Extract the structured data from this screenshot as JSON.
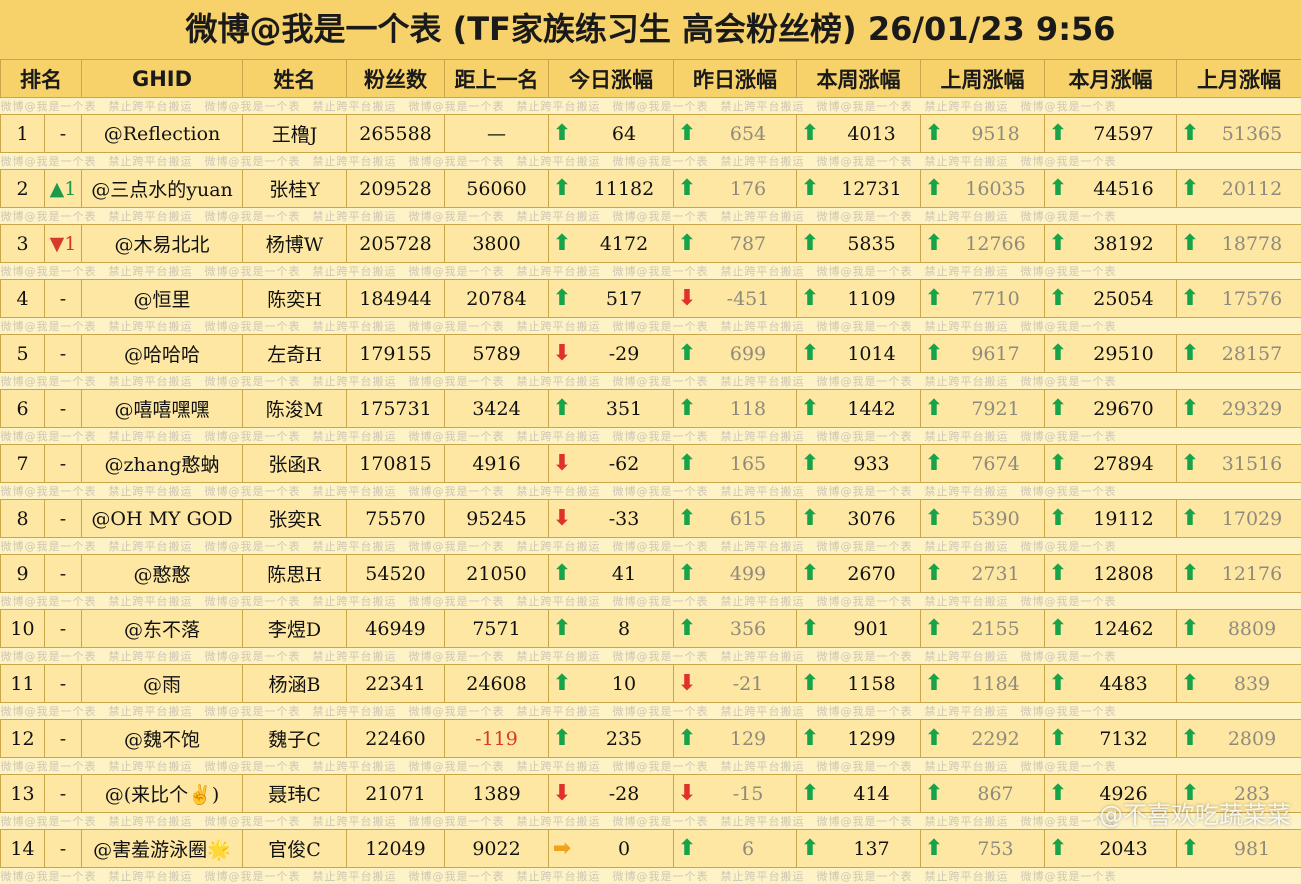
{
  "title": "微博@我是一个表 (TF家族练习生 高会粉丝榜)  26/01/23 9:56",
  "headers": [
    "排名",
    "GHID",
    "姓名",
    "粉丝数",
    "距上一名",
    "今日涨幅",
    "昨日涨幅",
    "本周涨幅",
    "上周涨幅",
    "本月涨幅",
    "上月涨幅"
  ],
  "watermark": "微博@我是一个表　禁止跨平台搬运　微博@我是一个表　禁止跨平台搬运　微博@我是一个表　禁止跨平台搬运　微博@我是一个表　禁止跨平台搬运　微博@我是一个表　禁止跨平台搬运　微博@我是一个表",
  "footer_mark": "@不喜欢吃蔬菜菜",
  "colors": {
    "header_bg": "#f7d16a",
    "row_bg": "#fde7a2",
    "up": "#17a34a",
    "down": "#e0312b",
    "flat": "#f2a21b"
  },
  "rows": [
    {
      "rank": "1",
      "change": "-",
      "change_dir": "none",
      "ghid": "@Reflection",
      "name": "王橹J",
      "fans": "265588",
      "gap": "—",
      "today": "64",
      "today_dir": "up",
      "yest": "654",
      "yest_dir": "up",
      "week": "4013",
      "week_dir": "up",
      "lweek": "9518",
      "lweek_dir": "up",
      "month": "74597",
      "month_dir": "up",
      "lmonth": "51365",
      "lmonth_dir": "up"
    },
    {
      "rank": "2",
      "change": "▲1",
      "change_dir": "up",
      "ghid": "@三点水的yuan",
      "name": "张桂Y",
      "fans": "209528",
      "gap": "56060",
      "today": "11182",
      "today_dir": "up",
      "yest": "176",
      "yest_dir": "up",
      "week": "12731",
      "week_dir": "up",
      "lweek": "16035",
      "lweek_dir": "up",
      "month": "44516",
      "month_dir": "up",
      "lmonth": "20112",
      "lmonth_dir": "up"
    },
    {
      "rank": "3",
      "change": "▼1",
      "change_dir": "down",
      "ghid": "@木易北北",
      "name": "杨博W",
      "fans": "205728",
      "gap": "3800",
      "today": "4172",
      "today_dir": "up",
      "yest": "787",
      "yest_dir": "up",
      "week": "5835",
      "week_dir": "up",
      "lweek": "12766",
      "lweek_dir": "up",
      "month": "38192",
      "month_dir": "up",
      "lmonth": "18778",
      "lmonth_dir": "up"
    },
    {
      "rank": "4",
      "change": "-",
      "change_dir": "none",
      "ghid": "@恒里",
      "name": "陈奕H",
      "fans": "184944",
      "gap": "20784",
      "today": "517",
      "today_dir": "up",
      "yest": "-451",
      "yest_dir": "down",
      "week": "1109",
      "week_dir": "up",
      "lweek": "7710",
      "lweek_dir": "up",
      "month": "25054",
      "month_dir": "up",
      "lmonth": "17576",
      "lmonth_dir": "up"
    },
    {
      "rank": "5",
      "change": "-",
      "change_dir": "none",
      "ghid": "@哈哈哈",
      "name": "左奇H",
      "fans": "179155",
      "gap": "5789",
      "today": "-29",
      "today_dir": "down",
      "yest": "699",
      "yest_dir": "up",
      "week": "1014",
      "week_dir": "up",
      "lweek": "9617",
      "lweek_dir": "up",
      "month": "29510",
      "month_dir": "up",
      "lmonth": "28157",
      "lmonth_dir": "up"
    },
    {
      "rank": "6",
      "change": "-",
      "change_dir": "none",
      "ghid": "@嘻嘻嘿嘿",
      "name": "陈浚M",
      "fans": "175731",
      "gap": "3424",
      "today": "351",
      "today_dir": "up",
      "yest": "118",
      "yest_dir": "up",
      "week": "1442",
      "week_dir": "up",
      "lweek": "7921",
      "lweek_dir": "up",
      "month": "29670",
      "month_dir": "up",
      "lmonth": "29329",
      "lmonth_dir": "up"
    },
    {
      "rank": "7",
      "change": "-",
      "change_dir": "none",
      "ghid": "@zhang憨蚋",
      "name": "张函R",
      "fans": "170815",
      "gap": "4916",
      "today": "-62",
      "today_dir": "down",
      "yest": "165",
      "yest_dir": "up",
      "week": "933",
      "week_dir": "up",
      "lweek": "7674",
      "lweek_dir": "up",
      "month": "27894",
      "month_dir": "up",
      "lmonth": "31516",
      "lmonth_dir": "up"
    },
    {
      "rank": "8",
      "change": "-",
      "change_dir": "none",
      "ghid": "@OH MY GOD",
      "name": "张奕R",
      "fans": "75570",
      "gap": "95245",
      "today": "-33",
      "today_dir": "down",
      "yest": "615",
      "yest_dir": "up",
      "week": "3076",
      "week_dir": "up",
      "lweek": "5390",
      "lweek_dir": "up",
      "month": "19112",
      "month_dir": "up",
      "lmonth": "17029",
      "lmonth_dir": "up"
    },
    {
      "rank": "9",
      "change": "-",
      "change_dir": "none",
      "ghid": "@憨憨",
      "name": "陈思H",
      "fans": "54520",
      "gap": "21050",
      "today": "41",
      "today_dir": "up",
      "yest": "499",
      "yest_dir": "up",
      "week": "2670",
      "week_dir": "up",
      "lweek": "2731",
      "lweek_dir": "up",
      "month": "12808",
      "month_dir": "up",
      "lmonth": "12176",
      "lmonth_dir": "up"
    },
    {
      "rank": "10",
      "change": "-",
      "change_dir": "none",
      "ghid": "@东不落",
      "name": "李煜D",
      "fans": "46949",
      "gap": "7571",
      "today": "8",
      "today_dir": "up",
      "yest": "356",
      "yest_dir": "up",
      "week": "901",
      "week_dir": "up",
      "lweek": "2155",
      "lweek_dir": "up",
      "month": "12462",
      "month_dir": "up",
      "lmonth": "8809",
      "lmonth_dir": "up"
    },
    {
      "rank": "11",
      "change": "-",
      "change_dir": "none",
      "ghid": "@雨",
      "name": "杨涵B",
      "fans": "22341",
      "gap": "24608",
      "today": "10",
      "today_dir": "up",
      "yest": "-21",
      "yest_dir": "down",
      "week": "1158",
      "week_dir": "up",
      "lweek": "1184",
      "lweek_dir": "up",
      "month": "4483",
      "month_dir": "up",
      "lmonth": "839",
      "lmonth_dir": "up"
    },
    {
      "rank": "12",
      "change": "-",
      "change_dir": "none",
      "ghid": "@魏不饱",
      "name": "魏子C",
      "fans": "22460",
      "gap": "-119",
      "gap_neg": true,
      "today": "235",
      "today_dir": "up",
      "yest": "129",
      "yest_dir": "up",
      "week": "1299",
      "week_dir": "up",
      "lweek": "2292",
      "lweek_dir": "up",
      "month": "7132",
      "month_dir": "up",
      "lmonth": "2809",
      "lmonth_dir": "up"
    },
    {
      "rank": "13",
      "change": "-",
      "change_dir": "none",
      "ghid": "@(来比个✌)",
      "name": "聂玮C",
      "fans": "21071",
      "gap": "1389",
      "today": "-28",
      "today_dir": "down",
      "yest": "-15",
      "yest_dir": "down",
      "week": "414",
      "week_dir": "up",
      "lweek": "867",
      "lweek_dir": "up",
      "month": "4926",
      "month_dir": "up",
      "lmonth": "283",
      "lmonth_dir": "up"
    },
    {
      "rank": "14",
      "change": "-",
      "change_dir": "none",
      "ghid": "@害羞游泳圈🌟",
      "name": "官俊C",
      "fans": "12049",
      "gap": "9022",
      "today": "0",
      "today_dir": "flat",
      "yest": "6",
      "yest_dir": "up",
      "week": "137",
      "week_dir": "up",
      "lweek": "753",
      "lweek_dir": "up",
      "month": "2043",
      "month_dir": "up",
      "lmonth": "981",
      "lmonth_dir": "up"
    }
  ]
}
